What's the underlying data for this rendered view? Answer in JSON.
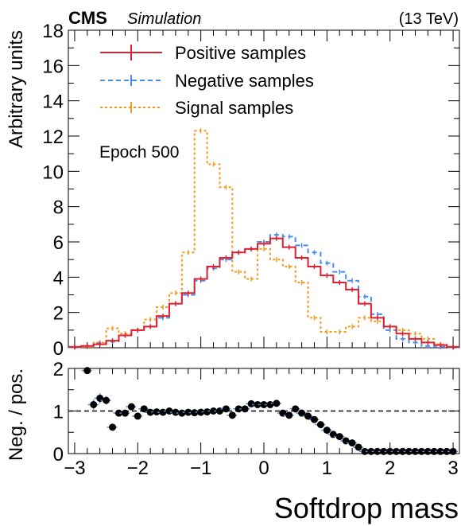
{
  "header": {
    "experiment": "CMS",
    "tag": "Simulation",
    "energy": "(13 TeV)"
  },
  "annotation": "Epoch 500",
  "colors": {
    "positive": "#e0202e",
    "negative": "#4a8de8",
    "signal": "#f29a1f",
    "ratio_points": "#000000"
  },
  "chart_data": [
    {
      "type": "line",
      "style": "step histogram",
      "xlabel": "Softdrop mass",
      "ylabel": "Arbitrary units",
      "xlim": [
        -3.1,
        3.1
      ],
      "ylim": [
        0,
        18
      ],
      "yticks": [
        0,
        2,
        4,
        6,
        8,
        10,
        12,
        14,
        16,
        18
      ],
      "xticks": [
        -3,
        -2,
        -1,
        0,
        1,
        2,
        3
      ],
      "legend_position": "top-left",
      "bin_edges": [
        -3.1,
        -2.9,
        -2.7,
        -2.5,
        -2.3,
        -2.1,
        -1.9,
        -1.7,
        -1.5,
        -1.3,
        -1.1,
        -0.9,
        -0.7,
        -0.5,
        -0.3,
        -0.1,
        0.1,
        0.3,
        0.5,
        0.7,
        0.9,
        1.1,
        1.3,
        1.5,
        1.7,
        1.9,
        2.1,
        2.3,
        2.5,
        2.7,
        2.9,
        3.1
      ],
      "series": [
        {
          "name": "Positive samples",
          "values": [
            0.05,
            0.1,
            0.2,
            0.4,
            0.7,
            1.0,
            1.2,
            1.8,
            2.5,
            3.1,
            3.9,
            4.6,
            5.1,
            5.4,
            5.6,
            5.9,
            6.2,
            5.7,
            5.1,
            4.6,
            4.1,
            3.7,
            3.3,
            2.5,
            1.7,
            1.2,
            0.8,
            0.5,
            0.3,
            0.15,
            0.05
          ]
        },
        {
          "name": "Negative samples",
          "values": [
            0.03,
            0.1,
            0.25,
            0.35,
            0.7,
            1.0,
            1.2,
            1.7,
            2.5,
            3.0,
            3.8,
            4.5,
            5.0,
            5.4,
            5.6,
            6.0,
            6.4,
            6.3,
            5.8,
            5.4,
            4.8,
            4.3,
            3.8,
            2.9,
            1.9,
            1.0,
            0.5,
            0.3,
            0.1,
            0.05,
            0.02
          ]
        },
        {
          "name": "Signal samples",
          "values": [
            0.02,
            0.05,
            0.3,
            1.1,
            0.8,
            1.0,
            1.6,
            2.3,
            3.1,
            5.4,
            12.3,
            10.4,
            9.1,
            4.3,
            3.9,
            5.6,
            5.0,
            4.6,
            3.7,
            1.7,
            0.9,
            0.9,
            1.2,
            1.7,
            1.5,
            1.2,
            1.0,
            0.8,
            0.5,
            0.2,
            0.05
          ]
        }
      ]
    },
    {
      "type": "scatter",
      "xlabel": "Softdrop mass",
      "ylabel": "Neg. / pos.",
      "xlim": [
        -3.1,
        3.1
      ],
      "ylim": [
        0,
        2
      ],
      "yticks": [
        0,
        1,
        2
      ],
      "xticks": [
        -3,
        -2,
        -1,
        0,
        1,
        2,
        3
      ],
      "reference_line": 1,
      "x": [
        -2.8,
        -2.7,
        -2.6,
        -2.5,
        -2.4,
        -2.3,
        -2.2,
        -2.1,
        -2.0,
        -1.9,
        -1.8,
        -1.7,
        -1.6,
        -1.5,
        -1.4,
        -1.3,
        -1.2,
        -1.1,
        -1.0,
        -0.9,
        -0.8,
        -0.7,
        -0.6,
        -0.5,
        -0.4,
        -0.3,
        -0.2,
        -0.1,
        0.0,
        0.1,
        0.2,
        0.3,
        0.4,
        0.5,
        0.6,
        0.7,
        0.8,
        0.9,
        1.0,
        1.1,
        1.2,
        1.3,
        1.4,
        1.5,
        1.6,
        1.7,
        1.8,
        1.9,
        2.0,
        2.1,
        2.2,
        2.3,
        2.4,
        2.5,
        2.6,
        2.7,
        2.8,
        2.9,
        3.0
      ],
      "y": [
        1.95,
        1.15,
        1.3,
        1.25,
        0.62,
        0.95,
        0.95,
        1.1,
        0.88,
        1.05,
        0.97,
        0.98,
        0.97,
        1.0,
        0.97,
        0.95,
        0.97,
        0.96,
        0.97,
        0.98,
        1.0,
        1.0,
        1.05,
        0.9,
        1.05,
        1.05,
        1.17,
        1.15,
        1.15,
        1.15,
        1.18,
        0.95,
        0.9,
        1.05,
        0.95,
        0.88,
        0.8,
        0.68,
        0.55,
        0.45,
        0.4,
        0.3,
        0.25,
        0.15,
        0.05,
        0.05,
        0.05,
        0.05,
        0.05,
        0.05,
        0.05,
        0.05,
        0.05,
        0.05,
        0.05,
        0.05,
        0.05,
        0.05,
        0.05
      ],
      "yerr": [
        0.08,
        0.12,
        0.12,
        0.1,
        0.05,
        0.05,
        0.05,
        0.05,
        0.05,
        0.04,
        0.04,
        0.04,
        0.04,
        0.04,
        0.03,
        0.03,
        0.03,
        0.03,
        0.03,
        0.03,
        0.03,
        0.03,
        0.03,
        0.03,
        0.03,
        0.03,
        0.03,
        0.03,
        0.03,
        0.03,
        0.03,
        0.03,
        0.03,
        0.03,
        0.03,
        0.03,
        0.03,
        0.03,
        0.03,
        0.03,
        0.03,
        0.03,
        0.03,
        0.03,
        0.03,
        0.03,
        0.03,
        0.03,
        0.03,
        0.03,
        0.03,
        0.03,
        0.03,
        0.03,
        0.03,
        0.03,
        0.03,
        0.03,
        0.03
      ]
    }
  ]
}
